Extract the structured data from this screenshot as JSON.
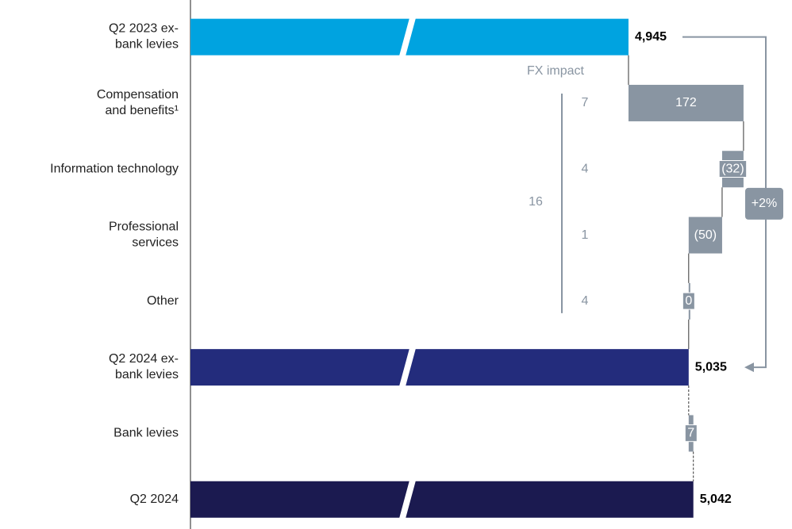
{
  "chart_data": {
    "type": "waterfall",
    "orientation": "horizontal",
    "categories": [
      "Q2 2023 ex-\nbank levies",
      "Compensation\nand benefits¹",
      "Information technology",
      "Professional\nservices",
      "Other",
      "Q2 2024 ex-\nbank levies",
      "Bank levies",
      "Q2 2024"
    ],
    "values": [
      4945,
      172,
      -32,
      -50,
      0,
      5035,
      7,
      5042
    ],
    "value_labels": [
      "4,945",
      "172",
      "(32)",
      "(50)",
      "0",
      "5,035",
      "7",
      "5,042"
    ],
    "measures": [
      "total",
      "relative",
      "relative",
      "relative",
      "relative",
      "total",
      "relative",
      "total"
    ],
    "colors": [
      "#00a3e0",
      "#8995a2",
      "#8995a2",
      "#8995a2",
      "#8995a2",
      "#232c7c",
      "#8995a2",
      "#1b1a50"
    ],
    "xlim": [
      4290,
      5180
    ],
    "axis_break": true,
    "fx_impact": {
      "label": "FX impact",
      "values": [
        7,
        4,
        1,
        4
      ],
      "total": 16
    },
    "change_label": "+2%"
  }
}
